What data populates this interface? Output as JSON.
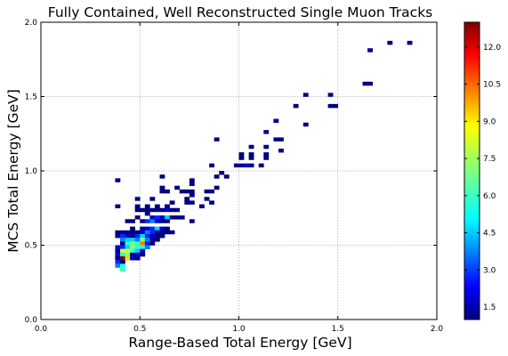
{
  "chart_data": {
    "type": "heatmap",
    "title": "Fully Contained, Well Reconstructed Single Muon Tracks",
    "xlabel": "Range-Based Total Energy [GeV]",
    "ylabel": "MCS Total Energy [GeV]",
    "xlim": [
      0.0,
      2.0
    ],
    "ylim": [
      0.0,
      2.0
    ],
    "x_ticks": [
      "0.0",
      "0.5",
      "1.0",
      "1.5",
      "2.0"
    ],
    "y_ticks": [
      "0.0",
      "0.5",
      "1.0",
      "1.5",
      "2.0"
    ],
    "grid": true,
    "bin_width": 0.025,
    "colorbar": {
      "min": 1,
      "max": 13,
      "colormap": "jet",
      "ticks": [
        "1.5",
        "3.0",
        "4.5",
        "6.0",
        "7.5",
        "9.0",
        "10.5",
        "12.0"
      ]
    },
    "bins": [
      [
        1.75,
        1.85,
        1
      ],
      [
        1.85,
        1.85,
        1
      ],
      [
        1.65,
        1.8,
        1
      ],
      [
        1.625,
        1.575,
        1
      ],
      [
        1.65,
        1.575,
        1
      ],
      [
        1.325,
        1.5,
        1
      ],
      [
        1.45,
        1.5,
        1
      ],
      [
        1.275,
        1.425,
        1
      ],
      [
        1.45,
        1.425,
        1
      ],
      [
        1.475,
        1.425,
        1
      ],
      [
        1.175,
        1.325,
        1
      ],
      [
        1.325,
        1.3,
        1
      ],
      [
        1.125,
        1.25,
        1
      ],
      [
        1.175,
        1.2,
        1
      ],
      [
        1.2,
        1.2,
        1
      ],
      [
        0.875,
        1.2,
        1
      ],
      [
        1.05,
        1.15,
        1
      ],
      [
        1.125,
        1.15,
        1
      ],
      [
        1.2,
        1.125,
        1
      ],
      [
        1.0,
        1.1,
        1
      ],
      [
        1.05,
        1.1,
        1
      ],
      [
        1.125,
        1.1,
        1
      ],
      [
        1.0,
        1.075,
        1
      ],
      [
        1.05,
        1.075,
        1
      ],
      [
        1.125,
        1.075,
        1
      ],
      [
        0.85,
        1.025,
        1
      ],
      [
        1.0,
        1.025,
        1
      ],
      [
        0.975,
        1.025,
        1
      ],
      [
        1.025,
        1.025,
        2
      ],
      [
        1.05,
        1.025,
        1
      ],
      [
        1.1,
        1.025,
        1
      ],
      [
        0.6,
        0.95,
        1
      ],
      [
        0.875,
        0.95,
        1
      ],
      [
        0.9,
        0.975,
        1
      ],
      [
        0.925,
        0.95,
        1
      ],
      [
        0.375,
        0.925,
        1
      ],
      [
        0.75,
        0.925,
        1
      ],
      [
        0.6,
        0.875,
        1
      ],
      [
        0.675,
        0.875,
        1
      ],
      [
        0.75,
        0.9,
        1
      ],
      [
        0.6,
        0.85,
        1
      ],
      [
        0.625,
        0.85,
        1
      ],
      [
        0.7,
        0.85,
        1
      ],
      [
        0.725,
        0.85,
        1
      ],
      [
        0.75,
        0.85,
        1
      ],
      [
        0.825,
        0.85,
        1
      ],
      [
        0.85,
        0.85,
        1
      ],
      [
        0.875,
        0.875,
        1
      ],
      [
        0.475,
        0.8,
        1
      ],
      [
        0.55,
        0.8,
        1
      ],
      [
        0.725,
        0.8,
        1
      ],
      [
        0.75,
        0.825,
        1
      ],
      [
        0.825,
        0.8,
        1
      ],
      [
        0.375,
        0.75,
        1
      ],
      [
        0.475,
        0.75,
        1
      ],
      [
        0.525,
        0.75,
        1
      ],
      [
        0.575,
        0.75,
        1
      ],
      [
        0.625,
        0.75,
        1
      ],
      [
        0.65,
        0.775,
        1
      ],
      [
        0.725,
        0.775,
        1
      ],
      [
        0.75,
        0.775,
        1
      ],
      [
        0.85,
        0.775,
        1
      ],
      [
        0.475,
        0.725,
        1
      ],
      [
        0.5,
        0.725,
        1
      ],
      [
        0.525,
        0.725,
        1
      ],
      [
        0.55,
        0.725,
        1
      ],
      [
        0.575,
        0.725,
        1
      ],
      [
        0.6,
        0.725,
        1
      ],
      [
        0.625,
        0.725,
        2
      ],
      [
        0.65,
        0.725,
        1
      ],
      [
        0.675,
        0.725,
        1
      ],
      [
        0.8,
        0.75,
        1
      ],
      [
        0.475,
        0.675,
        1
      ],
      [
        0.525,
        0.7,
        1
      ],
      [
        0.55,
        0.675,
        2
      ],
      [
        0.575,
        0.675,
        3
      ],
      [
        0.6,
        0.675,
        2
      ],
      [
        0.625,
        0.675,
        5
      ],
      [
        0.65,
        0.675,
        1
      ],
      [
        0.675,
        0.675,
        1
      ],
      [
        0.7,
        0.675,
        1
      ],
      [
        0.425,
        0.65,
        1
      ],
      [
        0.45,
        0.65,
        1
      ],
      [
        0.5,
        0.65,
        1
      ],
      [
        0.525,
        0.65,
        3
      ],
      [
        0.55,
        0.65,
        4
      ],
      [
        0.575,
        0.65,
        2
      ],
      [
        0.6,
        0.65,
        1
      ],
      [
        0.625,
        0.65,
        1
      ],
      [
        0.75,
        0.65,
        1
      ],
      [
        0.375,
        0.55,
        1
      ],
      [
        0.4,
        0.575,
        1
      ],
      [
        0.45,
        0.6,
        1
      ],
      [
        0.5,
        0.6,
        1
      ],
      [
        0.525,
        0.6,
        2
      ],
      [
        0.55,
        0.6,
        3
      ],
      [
        0.575,
        0.6,
        5
      ],
      [
        0.6,
        0.6,
        2
      ],
      [
        0.625,
        0.6,
        1
      ],
      [
        0.375,
        0.575,
        1
      ],
      [
        0.425,
        0.575,
        1
      ],
      [
        0.45,
        0.575,
        1
      ],
      [
        0.475,
        0.575,
        1
      ],
      [
        0.5,
        0.575,
        2
      ],
      [
        0.525,
        0.575,
        4
      ],
      [
        0.55,
        0.575,
        3
      ],
      [
        0.575,
        0.575,
        1
      ],
      [
        0.6,
        0.575,
        1
      ],
      [
        0.625,
        0.575,
        1
      ],
      [
        0.65,
        0.575,
        1
      ],
      [
        0.4,
        0.55,
        3
      ],
      [
        0.425,
        0.55,
        2
      ],
      [
        0.45,
        0.55,
        1
      ],
      [
        0.475,
        0.55,
        3
      ],
      [
        0.5,
        0.55,
        5
      ],
      [
        0.525,
        0.55,
        3
      ],
      [
        0.55,
        0.55,
        2
      ],
      [
        0.575,
        0.55,
        1
      ],
      [
        0.6,
        0.55,
        1
      ],
      [
        0.4,
        0.525,
        4
      ],
      [
        0.425,
        0.525,
        5
      ],
      [
        0.45,
        0.525,
        5
      ],
      [
        0.475,
        0.525,
        4
      ],
      [
        0.5,
        0.525,
        7
      ],
      [
        0.525,
        0.525,
        4
      ],
      [
        0.55,
        0.525,
        1
      ],
      [
        0.575,
        0.525,
        1
      ],
      [
        0.4,
        0.5,
        1
      ],
      [
        0.425,
        0.5,
        6
      ],
      [
        0.45,
        0.5,
        7
      ],
      [
        0.475,
        0.5,
        6
      ],
      [
        0.5,
        0.5,
        10
      ],
      [
        0.525,
        0.5,
        3
      ],
      [
        0.55,
        0.5,
        1
      ],
      [
        0.375,
        0.475,
        2
      ],
      [
        0.4,
        0.475,
        3
      ],
      [
        0.425,
        0.475,
        5
      ],
      [
        0.45,
        0.475,
        7
      ],
      [
        0.475,
        0.475,
        6
      ],
      [
        0.5,
        0.475,
        6
      ],
      [
        0.525,
        0.475,
        4
      ],
      [
        0.375,
        0.45,
        1
      ],
      [
        0.4,
        0.45,
        8
      ],
      [
        0.425,
        0.45,
        8
      ],
      [
        0.45,
        0.45,
        6
      ],
      [
        0.475,
        0.45,
        5
      ],
      [
        0.5,
        0.45,
        2
      ],
      [
        0.375,
        0.425,
        2
      ],
      [
        0.4,
        0.425,
        6
      ],
      [
        0.425,
        0.425,
        7
      ],
      [
        0.45,
        0.425,
        1
      ],
      [
        0.475,
        0.425,
        2
      ],
      [
        0.5,
        0.425,
        1
      ],
      [
        0.375,
        0.4,
        1
      ],
      [
        0.4,
        0.4,
        13
      ],
      [
        0.425,
        0.4,
        9
      ],
      [
        0.45,
        0.4,
        2
      ],
      [
        0.475,
        0.4,
        1
      ],
      [
        0.375,
        0.375,
        3
      ],
      [
        0.4,
        0.375,
        1
      ],
      [
        0.375,
        0.35,
        4
      ],
      [
        0.4,
        0.35,
        6
      ],
      [
        0.4,
        0.325,
        6
      ]
    ]
  }
}
